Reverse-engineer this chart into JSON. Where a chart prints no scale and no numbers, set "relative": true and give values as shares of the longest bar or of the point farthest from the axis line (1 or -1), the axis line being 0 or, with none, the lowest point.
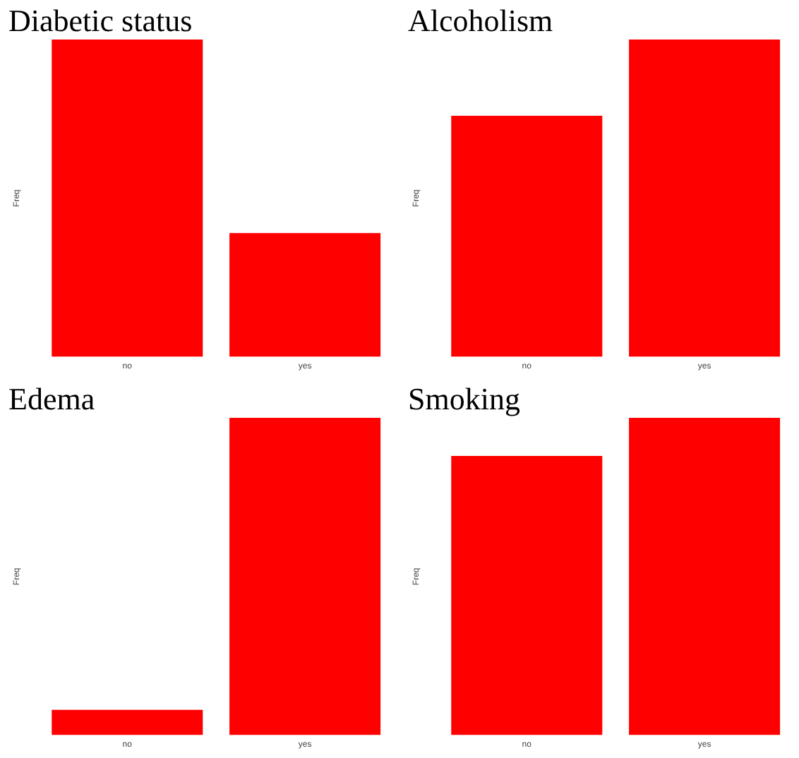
{
  "chart_data": [
    {
      "type": "bar",
      "title": "Diabetic status",
      "ylabel": "Freq",
      "categories": [
        "no",
        "yes"
      ],
      "values": [
        1,
        0.39
      ],
      "color": "#ff0000",
      "relative": true,
      "grid": false,
      "legend": false
    },
    {
      "type": "bar",
      "title": "Alcoholism",
      "ylabel": "Freq",
      "categories": [
        "no",
        "yes"
      ],
      "values": [
        0.76,
        1
      ],
      "color": "#ff0000",
      "relative": true,
      "grid": false,
      "legend": false
    },
    {
      "type": "bar",
      "title": "Edema",
      "ylabel": "Freq",
      "categories": [
        "no",
        "yes"
      ],
      "values": [
        0.08,
        1
      ],
      "color": "#ff0000",
      "relative": true,
      "grid": false,
      "legend": false
    },
    {
      "type": "bar",
      "title": "Smoking",
      "ylabel": "Freq",
      "categories": [
        "no",
        "yes"
      ],
      "values": [
        0.88,
        1
      ],
      "color": "#ff0000",
      "relative": true,
      "grid": false,
      "legend": false
    }
  ]
}
